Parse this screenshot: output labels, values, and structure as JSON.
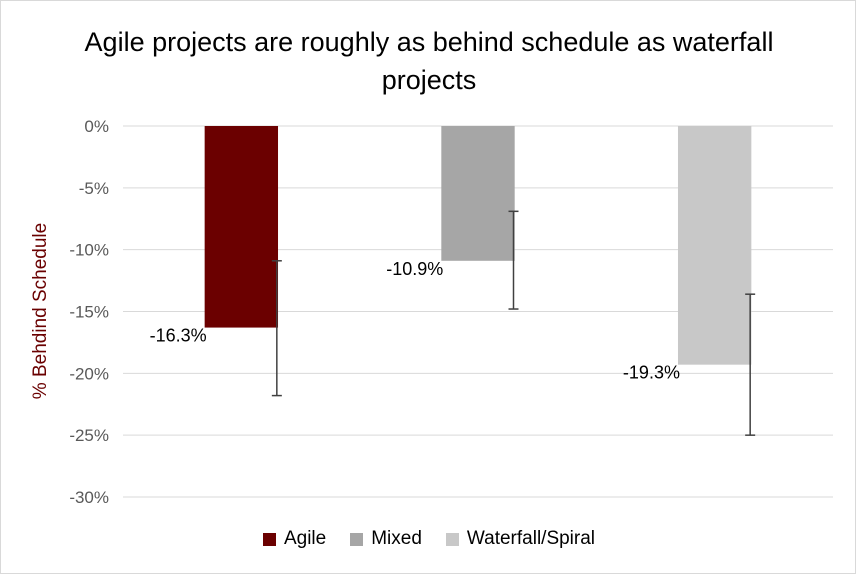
{
  "chart_data": {
    "type": "bar",
    "title": "Agile projects are roughly as behind schedule as waterfall projects",
    "ylabel": "% Behdind Schedule",
    "xlabel": "",
    "ylim": [
      -30,
      0
    ],
    "yticks": [
      0,
      -5,
      -10,
      -15,
      -20,
      -25,
      -30
    ],
    "ytick_labels": [
      "0%",
      "-5%",
      "-10%",
      "-15%",
      "-20%",
      "-25%",
      "-30%"
    ],
    "categories": [
      "Agile",
      "Mixed",
      "Waterfall/Spiral"
    ],
    "values": [
      -16.3,
      -10.9,
      -19.3
    ],
    "data_labels": [
      "-16.3%",
      "-10.9%",
      "-19.3%"
    ],
    "error_bars": [
      {
        "low": -21.8,
        "high": -10.9
      },
      {
        "low": -14.8,
        "high": -6.9
      },
      {
        "low": -25.0,
        "high": -13.6
      }
    ],
    "colors": [
      "#6b0000",
      "#a6a6a6",
      "#c8c8c8"
    ],
    "grid": true,
    "legend_position": "bottom"
  }
}
